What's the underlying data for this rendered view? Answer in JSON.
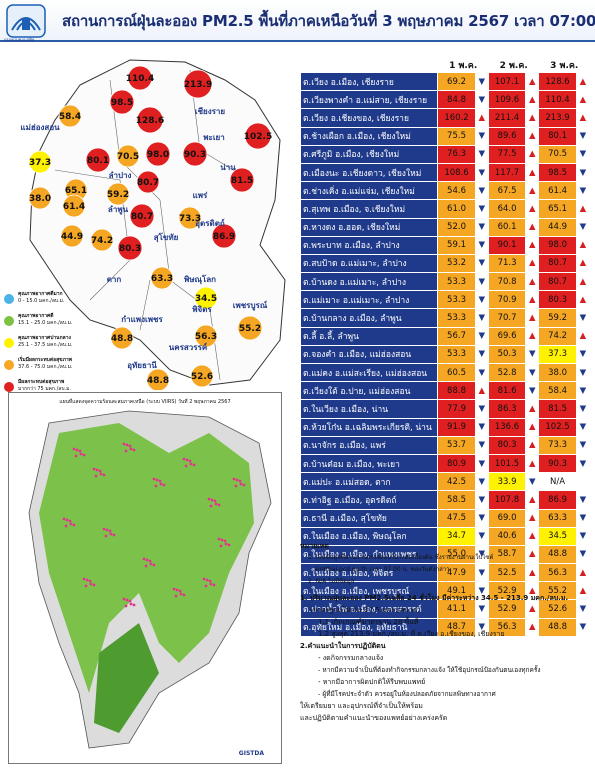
{
  "header": {
    "title": "สถานการณ์ฝุ่นละออง PM2.5 พื้นที่ภาคเหนือวันที่ 3 พฤษภาคม 2567 เวลา 07:00 น.",
    "logo_text": "กรมควบคุมมลพิษ"
  },
  "colors": {
    "blue": "#4bb3e6",
    "green": "#7dc242",
    "yellow": "#fff200",
    "orange": "#f5a623",
    "red": "#e02020",
    "navy": "#1f3a8a"
  },
  "legend": [
    {
      "l1": "คุณภาพอากาศดีมาก",
      "l2": "0 - 15.0 มคก./ลบ.ม.",
      "color": "#4bb3e6"
    },
    {
      "l1": "คุณภาพอากาศดี",
      "l2": "15.1 - 25.0 มคก./ลบ.ม.",
      "color": "#7dc242"
    },
    {
      "l1": "คุณภาพอากาศปานกลาง",
      "l2": "25.1 - 37.5 มคก./ลบ.ม.",
      "color": "#fff200"
    },
    {
      "l1": "เริ่มมีผลกระทบต่อสุขภาพ",
      "l2": "37.6 - 75.0 มคก./ลบ.ม.",
      "color": "#f5a623"
    },
    {
      "l1": "มีผลกระทบต่อสุขภาพ",
      "l2": "มากกว่า 75 มคก./ลบ.ม.",
      "color": "#e02020"
    }
  ],
  "map": {
    "provinces": [
      "เชียงราย",
      "แม่ฮ่องสอน",
      "พะเยา",
      "น่าน",
      "ลำปาง",
      "ลำพูน",
      "แพร่",
      "อุตรดิตถ์",
      "ตาก",
      "สุโขทัย",
      "พิษณุโลก",
      "กำแพงเพชร",
      "พิจิตร",
      "เพชรบูรณ์",
      "นครสวรรค์",
      "อุทัยธานี"
    ],
    "circles": [
      {
        "v": "110.4",
        "c": "red"
      },
      {
        "v": "213.9",
        "c": "red"
      },
      {
        "v": "98.5",
        "c": "red"
      },
      {
        "v": "58.4",
        "c": "orange"
      },
      {
        "v": "128.6",
        "c": "red"
      },
      {
        "v": "102.5",
        "c": "red"
      },
      {
        "v": "37.3",
        "c": "yellow"
      },
      {
        "v": "80.1",
        "c": "red"
      },
      {
        "v": "70.5",
        "c": "orange"
      },
      {
        "v": "98.0",
        "c": "red"
      },
      {
        "v": "90.3",
        "c": "red"
      },
      {
        "v": "65.1",
        "c": "orange"
      },
      {
        "v": "38.0",
        "c": "orange"
      },
      {
        "v": "61.4",
        "c": "orange"
      },
      {
        "v": "59.2",
        "c": "orange"
      },
      {
        "v": "80.7",
        "c": "red"
      },
      {
        "v": "81.5",
        "c": "red"
      },
      {
        "v": "44.9",
        "c": "orange"
      },
      {
        "v": "74.2",
        "c": "orange"
      },
      {
        "v": "80.7",
        "c": "red"
      },
      {
        "v": "73.3",
        "c": "orange"
      },
      {
        "v": "80.3",
        "c": "red"
      },
      {
        "v": "86.9",
        "c": "red"
      },
      {
        "v": "63.3",
        "c": "orange"
      },
      {
        "v": "34.5",
        "c": "yellow"
      },
      {
        "v": "48.8",
        "c": "orange"
      },
      {
        "v": "56.3",
        "c": "orange"
      },
      {
        "v": "55.2",
        "c": "orange"
      },
      {
        "v": "48.8",
        "c": "orange"
      },
      {
        "v": "52.6",
        "c": "orange"
      }
    ]
  },
  "table": {
    "headers": [
      "1 พ.ค.",
      "2 พ.ค.",
      "3 พ.ค."
    ],
    "rows": [
      {
        "s": "ต.เวียง อ.เมือง, เชียงราย",
        "v": [
          [
            "69.2",
            "o"
          ],
          [
            "107.1",
            "r"
          ],
          [
            "128.6",
            "r"
          ]
        ],
        "a": [
          "dn",
          "up",
          "up"
        ]
      },
      {
        "s": "ต.เวียงพางคำ อ.แม่สาย, เชียงราย",
        "v": [
          [
            "84.8",
            "r"
          ],
          [
            "109.6",
            "r"
          ],
          [
            "110.4",
            "r"
          ]
        ],
        "a": [
          "dn",
          "up",
          "up"
        ]
      },
      {
        "s": "ต.เวียง อ.เชียงของ, เชียงราย",
        "v": [
          [
            "160.2",
            "r"
          ],
          [
            "211.4",
            "r"
          ],
          [
            "213.9",
            "r"
          ]
        ],
        "a": [
          "up",
          "up",
          "up"
        ]
      },
      {
        "s": "ต.ช้างเผือก อ.เมือง, เชียงใหม่",
        "v": [
          [
            "75.5",
            "o"
          ],
          [
            "89.6",
            "r"
          ],
          [
            "80.1",
            "r"
          ]
        ],
        "a": [
          "dn",
          "up",
          "dn"
        ]
      },
      {
        "s": "ต.ศรีภูมิ อ.เมือง, เชียงใหม่",
        "v": [
          [
            "76.3",
            "r"
          ],
          [
            "77.5",
            "r"
          ],
          [
            "70.5",
            "o"
          ]
        ],
        "a": [
          "dn",
          "up",
          "dn"
        ]
      },
      {
        "s": "ต.เมืองนะ อ.เชียงดาว, เชียงใหม่",
        "v": [
          [
            "108.6",
            "r"
          ],
          [
            "117.7",
            "r"
          ],
          [
            "98.5",
            "r"
          ]
        ],
        "a": [
          "dn",
          "up",
          "dn"
        ]
      },
      {
        "s": "ต.ช่างเคิ่ง อ.แม่แจ่ม, เชียงใหม่",
        "v": [
          [
            "54.6",
            "o"
          ],
          [
            "67.5",
            "o"
          ],
          [
            "61.4",
            "o"
          ]
        ],
        "a": [
          "dn",
          "up",
          "dn"
        ]
      },
      {
        "s": "ต.สุเทพ อ.เมือง, จ.เชียงใหม่",
        "v": [
          [
            "61.0",
            "o"
          ],
          [
            "64.0",
            "o"
          ],
          [
            "65.1",
            "o"
          ]
        ],
        "a": [
          "dn",
          "up",
          "up"
        ]
      },
      {
        "s": "ต.หางดง อ.ฮอด, เชียงใหม่",
        "v": [
          [
            "52.0",
            "o"
          ],
          [
            "60.1",
            "o"
          ],
          [
            "44.9",
            "o"
          ]
        ],
        "a": [
          "dn",
          "up",
          "dn"
        ]
      },
      {
        "s": "ต.พระบาท อ.เมือง, ลำปาง",
        "v": [
          [
            "59.1",
            "o"
          ],
          [
            "90.1",
            "r"
          ],
          [
            "98.0",
            "r"
          ]
        ],
        "a": [
          "dn",
          "up",
          "up"
        ]
      },
      {
        "s": "ต.สบป้าด อ.แม่เมาะ, ลำปาง",
        "v": [
          [
            "53.2",
            "o"
          ],
          [
            "71.3",
            "o"
          ],
          [
            "80.7",
            "r"
          ]
        ],
        "a": [
          "dn",
          "up",
          "up"
        ]
      },
      {
        "s": "ต.บ้านดง อ.แม่เมาะ, ลำปาง",
        "v": [
          [
            "53.3",
            "o"
          ],
          [
            "70.8",
            "o"
          ],
          [
            "80.7",
            "r"
          ]
        ],
        "a": [
          "dn",
          "up",
          "up"
        ]
      },
      {
        "s": "ต.แม่เมาะ อ.แม่เมาะ, ลำปาง",
        "v": [
          [
            "53.3",
            "o"
          ],
          [
            "70.9",
            "o"
          ],
          [
            "80.3",
            "r"
          ]
        ],
        "a": [
          "dn",
          "up",
          "up"
        ]
      },
      {
        "s": "ต.บ้านกลาง อ.เมือง, ลำพูน",
        "v": [
          [
            "53.3",
            "o"
          ],
          [
            "70.7",
            "o"
          ],
          [
            "59.2",
            "o"
          ]
        ],
        "a": [
          "dn",
          "up",
          "dn"
        ]
      },
      {
        "s": "ต.ลี้ อ.ลี้, ลำพูน",
        "v": [
          [
            "56.7",
            "o"
          ],
          [
            "69.6",
            "o"
          ],
          [
            "74.2",
            "o"
          ]
        ],
        "a": [
          "dn",
          "up",
          "up"
        ]
      },
      {
        "s": "ต.จองคำ อ.เมือง, แม่ฮ่องสอน",
        "v": [
          [
            "53.3",
            "o"
          ],
          [
            "50.3",
            "o"
          ],
          [
            "37.3",
            "y"
          ]
        ],
        "a": [
          "dn",
          "dn",
          "dn"
        ]
      },
      {
        "s": "ต.แม่คง อ.แม่สะเรียง, แม่ฮ่องสอน",
        "v": [
          [
            "60.5",
            "o"
          ],
          [
            "52.8",
            "o"
          ],
          [
            "38.0",
            "o"
          ]
        ],
        "a": [
          "dn",
          "dn",
          "dn"
        ]
      },
      {
        "s": "ต.เวียงใต้ อ.ปาย, แม่ฮ่องสอน",
        "v": [
          [
            "88.8",
            "r"
          ],
          [
            "81.6",
            "r"
          ],
          [
            "58.4",
            "o"
          ]
        ],
        "a": [
          "up",
          "dn",
          "dn"
        ]
      },
      {
        "s": "ต.ในเวียง อ.เมือง, น่าน",
        "v": [
          [
            "77.9",
            "r"
          ],
          [
            "86.3",
            "r"
          ],
          [
            "81.5",
            "r"
          ]
        ],
        "a": [
          "dn",
          "up",
          "dn"
        ]
      },
      {
        "s": "ต.ห้วยโก๋น อ.เฉลิมพระเกียรติ, น่าน",
        "v": [
          [
            "91.9",
            "r"
          ],
          [
            "136.6",
            "r"
          ],
          [
            "102.5",
            "r"
          ]
        ],
        "a": [
          "dn",
          "up",
          "dn"
        ]
      },
      {
        "s": "ต.นาจักร อ.เมือง, แพร่",
        "v": [
          [
            "53.7",
            "o"
          ],
          [
            "80.3",
            "r"
          ],
          [
            "73.3",
            "o"
          ]
        ],
        "a": [
          "dn",
          "up",
          "dn"
        ]
      },
      {
        "s": "ต.บ้านต๋อม อ.เมือง, พะเยา",
        "v": [
          [
            "80.9",
            "r"
          ],
          [
            "101.5",
            "r"
          ],
          [
            "90.3",
            "r"
          ]
        ],
        "a": [
          "dn",
          "up",
          "dn"
        ]
      },
      {
        "s": "ต.แม่ปะ อ.แม่สอด, ตาก",
        "v": [
          [
            "42.5",
            "o"
          ],
          [
            "33.9",
            "y"
          ],
          [
            "N/A",
            "n"
          ]
        ],
        "a": [
          "dn",
          "dn",
          "fl"
        ]
      },
      {
        "s": "ต.ท่าอิฐ อ.เมือง, อุตรดิตถ์",
        "v": [
          [
            "58.5",
            "o"
          ],
          [
            "107.8",
            "r"
          ],
          [
            "86.9",
            "r"
          ]
        ],
        "a": [
          "dn",
          "up",
          "dn"
        ]
      },
      {
        "s": "ต.ธานี อ.เมือง, สุโขทัย",
        "v": [
          [
            "47.5",
            "o"
          ],
          [
            "69.0",
            "o"
          ],
          [
            "63.3",
            "o"
          ]
        ],
        "a": [
          "dn",
          "up",
          "dn"
        ]
      },
      {
        "s": "ต.ในเมือง อ.เมือง, พิษณุโลก",
        "v": [
          [
            "34.7",
            "y"
          ],
          [
            "40.6",
            "o"
          ],
          [
            "34.5",
            "y"
          ]
        ],
        "a": [
          "dn",
          "up",
          "dn"
        ]
      },
      {
        "s": "ต.ในเมือง อ.เมือง, กำแพงเพชร",
        "v": [
          [
            "55.0",
            "o"
          ],
          [
            "58.7",
            "o"
          ],
          [
            "48.8",
            "o"
          ]
        ],
        "a": [
          "dn",
          "up",
          "dn"
        ]
      },
      {
        "s": "ต.ในเมือง อ.เมือง, พิจิตร",
        "v": [
          [
            "47.9",
            "o"
          ],
          [
            "52.5",
            "o"
          ],
          [
            "56.3",
            "o"
          ]
        ],
        "a": [
          "dn",
          "up",
          "up"
        ]
      },
      {
        "s": "ต.ในเมือง อ.เมือง, เพชรบูรณ์",
        "v": [
          [
            "49.1",
            "o"
          ],
          [
            "52.9",
            "o"
          ],
          [
            "55.2",
            "o"
          ]
        ],
        "a": [
          "dn",
          "up",
          "up"
        ]
      },
      {
        "s": "ต.ปากน้ำโพ อ.เมือง, นครสวรรค์",
        "v": [
          [
            "41.1",
            "o"
          ],
          [
            "52.9",
            "o"
          ],
          [
            "52.6",
            "o"
          ]
        ],
        "a": [
          "dn",
          "up",
          "dn"
        ]
      },
      {
        "s": "ต.อุทัยใหม่ อ.เมือง, อุทัยธานี",
        "v": [
          [
            "48.7",
            "o"
          ],
          [
            "56.3",
            "o"
          ],
          [
            "48.8",
            "o"
          ]
        ],
        "a": [
          "dn",
          "up",
          "dn"
        ]
      }
    ]
  },
  "notes": {
    "remark_title": "หมายเหตุ",
    "remark_1": "1. เป็นข้อมูลที่ผ่านการตรวจสอบในระดับเบื้องต้น ซึ่งรายงานผ่านเว็บไซต์",
    "remark_1b": "air4thai.pcd.go.th เวลา 07.00 น. ของวันดังกล่าว",
    "remark_2": "2. N/A ไม่มีข้อมูล",
    "p1": "1. ปริมาณฝุ่นละออง PM2.5เฉลี่ย 24 ชั่วโมง มีค่าระหว่าง 34.5 - 213.9 มคก./ลบ.ม.",
    "p1b": "(มาตรฐานไม่เกิน 37.5 มคก./ลบ.ม.)",
    "p1c": "1.1 เกินเกณฑ์มาตรฐาน 28 พื้นที่",
    "p1d": "1.2 สูงสุด 213.9 มคก./ลบ.ม. ที่ ต.เวียง อ.เชียงของ, เชียงราย",
    "p2": "2.คำแนะนำในการปฏิบัติตน",
    "b1": "- งดกิจกรรมกลางแจ้ง",
    "b2": "- หากมีความจำเป็นที่ต้องทำกิจกรรมกลางแจ้ง ให้ใช้อุปกรณ์ป้องกันตนเองทุกครั้ง",
    "b3": "- หากมีอาการผิดปกติให้รีบพบแพทย์",
    "b4": "- ผู้ที่มีโรคประจำตัว ควรอยู่ในห้องปลอดภัยจากมลพิษทางอากาศ",
    "b5": "ให้เตรียมยา และอุปกรณ์ที่จำเป็นให้พร้อม",
    "b6": "และปฏิบัติตามคำแนะนำของแพทย์อย่างเคร่งครัด"
  },
  "satellite": {
    "title": "แผนที่แสดงจุดความร้อนสะสมภาคเหนือ (ระบบ VIIRS) วันที่ 2 พฤษภาคม 2567",
    "credit": "GISTDA"
  }
}
